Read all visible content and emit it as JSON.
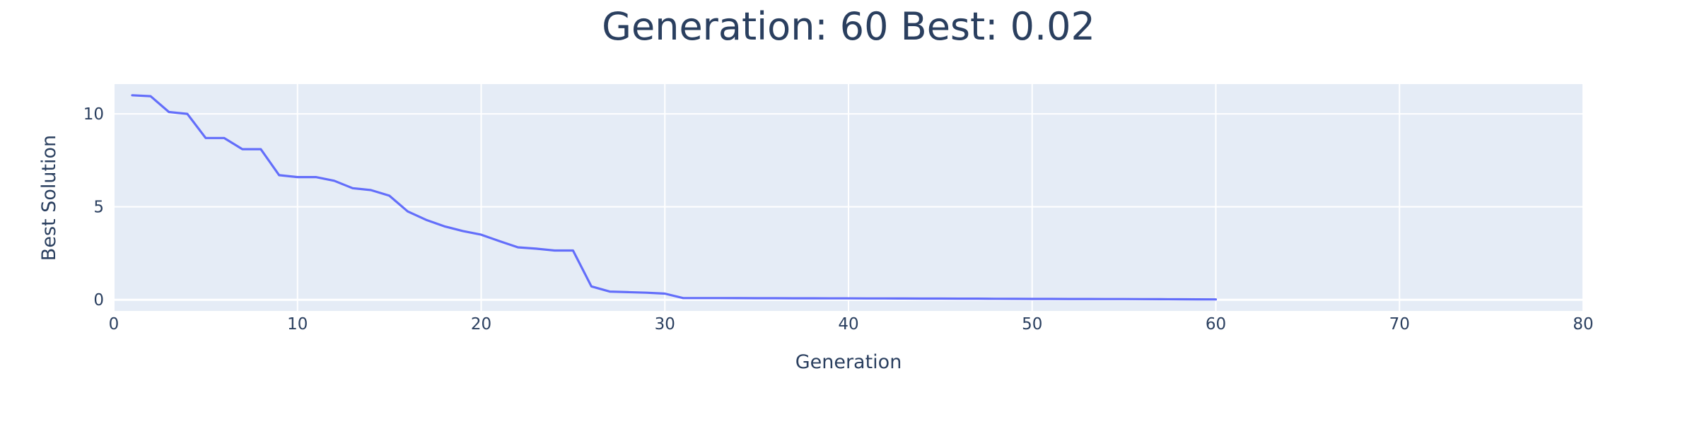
{
  "chart_data": {
    "type": "line",
    "title": "Generation: 60 Best: 0.02",
    "xlabel": "Generation",
    "ylabel": "Best Solution",
    "xlim": [
      0,
      80
    ],
    "ylim": [
      -0.6,
      11.6
    ],
    "x_ticks": [
      0,
      10,
      20,
      30,
      40,
      50,
      60,
      70,
      80
    ],
    "y_ticks": [
      0,
      5,
      10
    ],
    "grid": true,
    "colors": {
      "plot_bg": "#e5ecf6",
      "grid": "#ffffff",
      "line": "#636efa",
      "text": "#2a3f5f"
    },
    "series": [
      {
        "x": [
          1,
          2,
          3,
          4,
          5,
          6,
          7,
          8,
          9,
          10,
          11,
          12,
          13,
          14,
          15,
          16,
          17,
          18,
          19,
          20,
          21,
          22,
          23,
          24,
          25,
          26,
          27,
          28,
          29,
          30,
          31,
          32,
          33,
          34,
          35,
          36,
          37,
          38,
          39,
          40,
          41,
          42,
          43,
          44,
          45,
          46,
          47,
          48,
          49,
          50,
          51,
          52,
          53,
          54,
          55,
          56,
          57,
          58,
          59,
          60
        ],
        "y": [
          11.0,
          10.95,
          10.1,
          10.0,
          8.7,
          8.7,
          8.1,
          8.1,
          6.7,
          6.6,
          6.6,
          6.4,
          6.0,
          5.9,
          5.6,
          4.75,
          4.3,
          3.95,
          3.7,
          3.5,
          3.15,
          2.82,
          2.75,
          2.65,
          2.65,
          0.72,
          0.44,
          0.41,
          0.38,
          0.33,
          0.09,
          0.09,
          0.09,
          0.088,
          0.086,
          0.084,
          0.082,
          0.08,
          0.078,
          0.075,
          0.073,
          0.071,
          0.069,
          0.067,
          0.065,
          0.063,
          0.06,
          0.055,
          0.05,
          0.048,
          0.046,
          0.044,
          0.042,
          0.04,
          0.037,
          0.034,
          0.031,
          0.028,
          0.024,
          0.02
        ]
      }
    ]
  }
}
